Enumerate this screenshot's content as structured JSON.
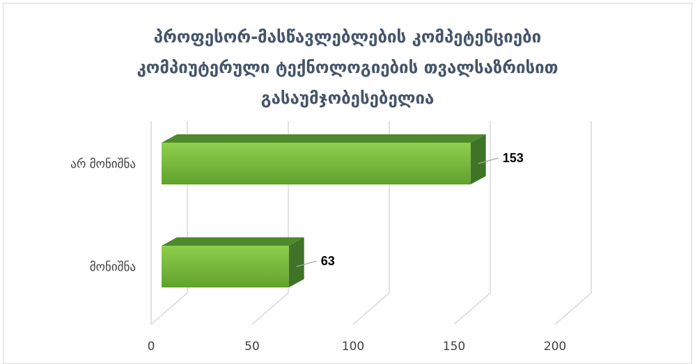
{
  "chart_data": {
    "type": "bar",
    "orientation": "horizontal",
    "style": "3d",
    "title_lines": [
      "პროფესორ-მასწავლებლების კომპეტენციები",
      "კომპიუტერული ტექნოლოგიების თვალსაზრისით",
      "გასაუმჯობესებელია"
    ],
    "categories": [
      "არ მონიშნა",
      "მონიშნა"
    ],
    "values": [
      153,
      63
    ],
    "data_labels": [
      "153",
      "63"
    ],
    "xlim": [
      0,
      200
    ],
    "x_ticks": [
      "0",
      "50",
      "100",
      "150",
      "200"
    ],
    "grid": true,
    "legend": "none",
    "colors": {
      "bar_front_top": "#8fcf4d",
      "bar_front_bottom": "#5fa22c",
      "bar_top": "#4e8a2c",
      "bar_side": "#3f7428",
      "title": "#44546a",
      "gridline": "#d9d9d9",
      "axis_text": "#404040",
      "label_text": "#000000"
    }
  }
}
